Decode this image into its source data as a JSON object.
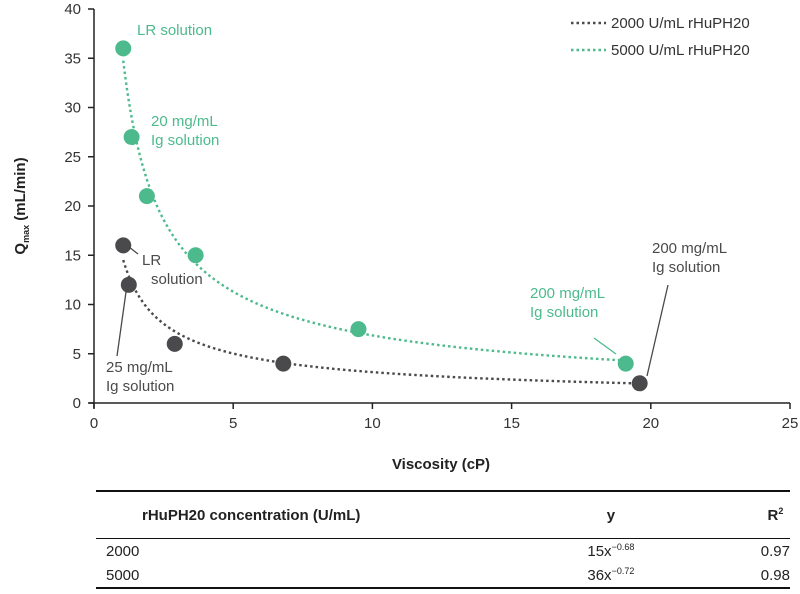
{
  "chart_data": {
    "type": "scatter",
    "xlabel": "Viscosity (cP)",
    "ylabel": "Q",
    "ylabel_sub": "max",
    "ylabel_unit": " (mL/min)",
    "xlim": [
      0,
      25
    ],
    "ylim": [
      0,
      40
    ],
    "xticks": [
      0,
      5,
      10,
      15,
      20,
      25
    ],
    "yticks": [
      0,
      5,
      10,
      15,
      20,
      25,
      30,
      35,
      40
    ],
    "grid": false,
    "legend_position": "top-right",
    "series": [
      {
        "name": "2000 U/mL rHuPH20",
        "color": "#4a4a4c",
        "line_style": "dotted",
        "fit": {
          "a": 15,
          "b": -0.68,
          "x_start": 1.05,
          "x_end": 19.6
        },
        "points": [
          {
            "x": 1.05,
            "y": 16
          },
          {
            "x": 1.25,
            "y": 12
          },
          {
            "x": 2.9,
            "y": 6
          },
          {
            "x": 6.8,
            "y": 4
          },
          {
            "x": 19.6,
            "y": 2
          }
        ]
      },
      {
        "name": "5000 U/mL rHuPH20",
        "color": "#4cba8c",
        "line_style": "dotted",
        "fit": {
          "a": 36,
          "b": -0.72,
          "x_start": 1.05,
          "x_end": 19.1
        },
        "points": [
          {
            "x": 1.05,
            "y": 36
          },
          {
            "x": 1.35,
            "y": 27
          },
          {
            "x": 1.9,
            "y": 21
          },
          {
            "x": 3.65,
            "y": 15
          },
          {
            "x": 9.5,
            "y": 7.5
          },
          {
            "x": 19.1,
            "y": 4
          }
        ]
      }
    ],
    "annotations": [
      {
        "key": "lr_green",
        "lines": [
          "LR solution"
        ],
        "color": "#4cba8c"
      },
      {
        "key": "ig20_green",
        "lines": [
          "20 mg/mL",
          "Ig solution"
        ],
        "color": "#4cba8c"
      },
      {
        "key": "lr_dark",
        "lines": [
          "LR",
          "solution"
        ],
        "color": "#4a4a4c"
      },
      {
        "key": "ig25_dark",
        "lines": [
          "25 mg/mL",
          "Ig solution"
        ],
        "color": "#4a4a4c"
      },
      {
        "key": "ig200_green",
        "lines": [
          "200 mg/mL",
          "Ig solution"
        ],
        "color": "#4cba8c"
      },
      {
        "key": "ig200_dark",
        "lines": [
          "200 mg/mL",
          "Ig solution"
        ],
        "color": "#4a4a4c"
      }
    ]
  },
  "table": {
    "headers": {
      "concentration": "rHuPH20 concentration (U/mL)",
      "y": "y",
      "r2_base": "R",
      "r2_sup": "2"
    },
    "rows": [
      {
        "concentration": "2000",
        "y_base": "15x",
        "y_exp": "−0.68",
        "r2": "0.97"
      },
      {
        "concentration": "5000",
        "y_base": "36x",
        "y_exp": "−0.72",
        "r2": "0.98"
      }
    ]
  }
}
